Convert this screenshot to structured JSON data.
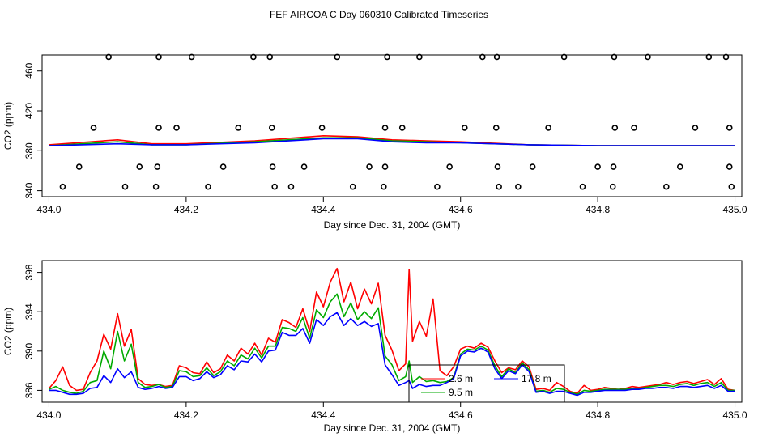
{
  "title": "FEF AIRCOA C  Day 060310  Calibrated Timeseries",
  "chart_data": [
    {
      "type": "scatter+line",
      "xlabel": "Day since Dec. 31, 2004 (GMT)",
      "ylabel": "CO2 (ppm)",
      "xlim": [
        433.99,
        435.01
      ],
      "ylim": [
        334,
        476
      ],
      "xticks": [
        "434.0",
        "434.2",
        "434.4",
        "434.6",
        "434.8",
        "435.0"
      ],
      "yticks": [
        "340",
        "380",
        "420",
        "460"
      ],
      "calibration_points": {
        "x": [
          434.087,
          434.16,
          434.208,
          434.298,
          434.322,
          434.42,
          434.493,
          434.54,
          434.632,
          434.653,
          434.751,
          434.824,
          434.873,
          434.962,
          434.987,
          434.065,
          434.16,
          434.186,
          434.276,
          434.325,
          434.398,
          434.49,
          434.515,
          434.606,
          434.652,
          434.728,
          434.825,
          434.853,
          434.942,
          434.992,
          434.044,
          434.132,
          434.158,
          434.254,
          434.326,
          434.372,
          434.467,
          434.49,
          434.584,
          434.654,
          434.705,
          434.8,
          434.823,
          434.92,
          434.992,
          434.02,
          434.111,
          434.156,
          434.232,
          434.329,
          434.353,
          434.443,
          434.488,
          434.566,
          434.656,
          434.684,
          434.778,
          434.822,
          434.9,
          434.995
        ],
        "y": [
          474,
          474,
          474,
          474,
          474,
          474,
          474,
          474,
          474,
          474,
          474,
          474,
          474,
          474,
          474,
          403,
          403,
          403,
          403,
          403,
          403,
          403,
          403,
          403,
          403,
          403,
          403,
          403,
          403,
          403,
          364,
          364,
          364,
          364,
          364,
          364,
          364,
          364,
          364,
          364,
          364,
          364,
          364,
          364,
          364,
          344,
          344,
          344,
          344,
          344,
          344,
          344,
          344,
          344,
          344,
          344,
          344,
          344,
          344,
          344
        ]
      },
      "series": [
        {
          "name": "2.6 m",
          "color": "#ff0000",
          "x": [
            434.0,
            434.1,
            434.15,
            434.2,
            434.3,
            434.4,
            434.45,
            434.5,
            434.55,
            434.6,
            434.7,
            434.8,
            434.9,
            435.0
          ],
          "values": [
            386,
            391,
            387,
            387,
            390,
            395,
            394,
            391,
            390,
            389,
            386,
            385,
            385,
            385
          ]
        },
        {
          "name": "9.5 m",
          "color": "#00aa00",
          "x": [
            434.0,
            434.1,
            434.15,
            434.2,
            434.3,
            434.4,
            434.45,
            434.5,
            434.55,
            434.6,
            434.7,
            434.8,
            434.9,
            435.0
          ],
          "values": [
            385,
            389,
            386,
            386,
            389,
            393,
            393,
            390,
            389,
            388,
            386,
            385,
            385,
            385
          ]
        },
        {
          "name": "17.8 m",
          "color": "#0000ff",
          "x": [
            434.0,
            434.1,
            434.15,
            434.2,
            434.3,
            434.4,
            434.45,
            434.5,
            434.55,
            434.6,
            434.7,
            434.8,
            434.9,
            435.0
          ],
          "values": [
            385,
            387,
            386,
            386,
            388,
            392,
            392,
            389,
            388,
            388,
            386,
            385,
            385,
            385
          ]
        }
      ]
    },
    {
      "type": "line",
      "xlabel": "Day since Dec. 31, 2004 (GMT)",
      "ylabel": "CO2 (ppm)",
      "xlim": [
        433.99,
        435.01
      ],
      "ylim": [
        384.8,
        399.2
      ],
      "xticks": [
        "434.0",
        "434.2",
        "434.4",
        "434.6",
        "434.8",
        "435.0"
      ],
      "yticks": [
        "386",
        "390",
        "394",
        "398"
      ],
      "legend": {
        "placement": "bottom-center",
        "entries": [
          "2.6 m",
          "17.8 m",
          "9.5 m"
        ]
      },
      "series": [
        {
          "name": "2.6 m",
          "color": "#ff0000",
          "x": [
            434.0,
            434.01,
            434.02,
            434.03,
            434.04,
            434.05,
            434.06,
            434.07,
            434.08,
            434.09,
            434.1,
            434.11,
            434.12,
            434.13,
            434.14,
            434.15,
            434.16,
            434.17,
            434.18,
            434.19,
            434.2,
            434.21,
            434.22,
            434.23,
            434.24,
            434.25,
            434.26,
            434.27,
            434.28,
            434.29,
            434.3,
            434.31,
            434.32,
            434.33,
            434.34,
            434.35,
            434.36,
            434.37,
            434.38,
            434.39,
            434.4,
            434.41,
            434.42,
            434.43,
            434.44,
            434.45,
            434.46,
            434.47,
            434.48,
            434.49,
            434.5,
            434.51,
            434.52,
            434.525,
            434.53,
            434.54,
            434.55,
            434.56,
            434.57,
            434.58,
            434.59,
            434.6,
            434.61,
            434.62,
            434.63,
            434.64,
            434.65,
            434.66,
            434.67,
            434.68,
            434.69,
            434.7,
            434.71,
            434.72,
            434.73,
            434.74,
            434.75,
            434.76,
            434.77,
            434.78,
            434.79,
            434.8,
            434.81,
            434.82,
            434.83,
            434.84,
            434.85,
            434.86,
            434.87,
            434.88,
            434.89,
            434.9,
            434.91,
            434.92,
            434.93,
            434.94,
            434.95,
            434.96,
            434.97,
            434.98,
            434.99,
            435.0
          ],
          "values": [
            386.2,
            387.0,
            388.4,
            386.5,
            386.0,
            386.1,
            387.8,
            389.0,
            391.7,
            390.2,
            393.8,
            390.5,
            392.2,
            387.2,
            386.6,
            386.5,
            386.6,
            386.4,
            386.5,
            388.5,
            388.3,
            387.8,
            387.7,
            388.9,
            387.8,
            388.2,
            389.6,
            389.0,
            390.3,
            389.7,
            390.8,
            389.6,
            391.3,
            390.9,
            393.2,
            392.9,
            392.4,
            394.3,
            392.0,
            396.0,
            394.5,
            397.0,
            398.4,
            395.0,
            397.0,
            394.3,
            396.3,
            394.8,
            396.9,
            391.6,
            390.1,
            388.0,
            388.7,
            398.3,
            391.0,
            393.0,
            391.5,
            395.3,
            388.0,
            387.5,
            388.4,
            390.2,
            390.5,
            390.3,
            390.8,
            390.4,
            389.0,
            387.8,
            388.3,
            388.1,
            389.0,
            388.4,
            386.1,
            386.2,
            386.0,
            386.8,
            386.4,
            385.9,
            385.7,
            386.5,
            386.0,
            386.1,
            386.3,
            386.2,
            386.1,
            386.2,
            386.4,
            386.3,
            386.4,
            386.5,
            386.6,
            386.8,
            386.6,
            386.8,
            386.9,
            386.7,
            386.9,
            387.1,
            386.6,
            387.2,
            386.1,
            386.0
          ]
        },
        {
          "name": "9.5 m",
          "color": "#00aa00",
          "x": [
            434.0,
            434.01,
            434.02,
            434.03,
            434.04,
            434.05,
            434.06,
            434.07,
            434.08,
            434.09,
            434.1,
            434.11,
            434.12,
            434.13,
            434.14,
            434.15,
            434.16,
            434.17,
            434.18,
            434.19,
            434.2,
            434.21,
            434.22,
            434.23,
            434.24,
            434.25,
            434.26,
            434.27,
            434.28,
            434.29,
            434.3,
            434.31,
            434.32,
            434.33,
            434.34,
            434.35,
            434.36,
            434.37,
            434.38,
            434.39,
            434.4,
            434.41,
            434.42,
            434.43,
            434.44,
            434.45,
            434.46,
            434.47,
            434.48,
            434.49,
            434.5,
            434.51,
            434.52,
            434.525,
            434.53,
            434.54,
            434.55,
            434.56,
            434.57,
            434.58,
            434.59,
            434.6,
            434.61,
            434.62,
            434.63,
            434.64,
            434.65,
            434.66,
            434.67,
            434.68,
            434.69,
            434.7,
            434.71,
            434.72,
            434.73,
            434.74,
            434.75,
            434.76,
            434.77,
            434.78,
            434.79,
            434.8,
            434.81,
            434.82,
            434.83,
            434.84,
            434.85,
            434.86,
            434.87,
            434.88,
            434.89,
            434.9,
            434.91,
            434.92,
            434.93,
            434.94,
            434.95,
            434.96,
            434.97,
            434.98,
            434.99,
            435.0
          ],
          "values": [
            386.1,
            386.4,
            386.0,
            385.8,
            385.7,
            385.9,
            386.8,
            387.0,
            390.0,
            388.2,
            392.0,
            389.0,
            390.7,
            386.8,
            386.3,
            386.4,
            386.6,
            386.3,
            386.4,
            388.0,
            387.9,
            387.4,
            387.5,
            388.3,
            387.5,
            387.9,
            389.0,
            388.5,
            389.6,
            389.2,
            390.3,
            389.3,
            390.5,
            390.5,
            392.4,
            392.3,
            392.0,
            393.4,
            391.3,
            394.2,
            393.4,
            395.0,
            395.8,
            393.5,
            394.9,
            393.2,
            394.0,
            393.3,
            394.4,
            389.5,
            388.6,
            387.0,
            387.4,
            389.0,
            386.8,
            387.4,
            386.9,
            387.0,
            386.8,
            386.9,
            387.3,
            389.7,
            390.2,
            390.1,
            390.5,
            390.1,
            388.5,
            387.4,
            388.2,
            387.8,
            388.8,
            388.1,
            385.9,
            386.0,
            385.8,
            386.2,
            386.1,
            385.8,
            385.6,
            386.0,
            385.9,
            386.0,
            386.1,
            386.1,
            386.1,
            386.1,
            386.2,
            386.2,
            386.3,
            386.4,
            386.5,
            386.5,
            386.4,
            386.6,
            386.7,
            386.5,
            386.7,
            386.8,
            386.4,
            386.8,
            386.0,
            386.0
          ]
        },
        {
          "name": "17.8 m",
          "color": "#0000ff",
          "x": [
            434.0,
            434.01,
            434.02,
            434.03,
            434.04,
            434.05,
            434.06,
            434.07,
            434.08,
            434.09,
            434.1,
            434.11,
            434.12,
            434.13,
            434.14,
            434.15,
            434.16,
            434.17,
            434.18,
            434.19,
            434.2,
            434.21,
            434.22,
            434.23,
            434.24,
            434.25,
            434.26,
            434.27,
            434.28,
            434.29,
            434.3,
            434.31,
            434.32,
            434.33,
            434.34,
            434.35,
            434.36,
            434.37,
            434.38,
            434.39,
            434.4,
            434.41,
            434.42,
            434.43,
            434.44,
            434.45,
            434.46,
            434.47,
            434.48,
            434.49,
            434.5,
            434.51,
            434.52,
            434.525,
            434.53,
            434.54,
            434.55,
            434.56,
            434.57,
            434.58,
            434.59,
            434.6,
            434.61,
            434.62,
            434.63,
            434.64,
            434.65,
            434.66,
            434.67,
            434.68,
            434.69,
            434.7,
            434.71,
            434.72,
            434.73,
            434.74,
            434.75,
            434.76,
            434.77,
            434.78,
            434.79,
            434.8,
            434.81,
            434.82,
            434.83,
            434.84,
            434.85,
            434.86,
            434.87,
            434.88,
            434.89,
            434.9,
            434.91,
            434.92,
            434.93,
            434.94,
            434.95,
            434.96,
            434.97,
            434.98,
            434.99,
            435.0
          ],
          "values": [
            386.0,
            386.0,
            385.8,
            385.6,
            385.6,
            385.7,
            386.2,
            386.3,
            387.5,
            386.8,
            388.2,
            387.3,
            387.9,
            386.3,
            386.1,
            386.2,
            386.4,
            386.2,
            386.3,
            387.4,
            387.4,
            387.0,
            387.2,
            387.9,
            387.3,
            387.6,
            388.5,
            388.1,
            389.0,
            388.9,
            389.7,
            388.9,
            390.0,
            390.1,
            391.9,
            391.6,
            391.6,
            392.3,
            390.8,
            393.2,
            392.6,
            393.5,
            393.9,
            392.6,
            393.3,
            392.6,
            393.0,
            392.5,
            392.8,
            388.6,
            387.6,
            386.5,
            386.8,
            387.0,
            386.2,
            386.6,
            386.4,
            386.5,
            386.5,
            386.8,
            387.2,
            389.5,
            390.0,
            389.9,
            390.3,
            389.9,
            388.2,
            387.2,
            388.0,
            387.7,
            388.6,
            387.9,
            385.8,
            385.9,
            385.7,
            385.9,
            385.9,
            385.7,
            385.5,
            385.8,
            385.8,
            385.9,
            386.0,
            386.0,
            386.0,
            386.0,
            386.1,
            386.1,
            386.2,
            386.2,
            386.3,
            386.3,
            386.2,
            386.4,
            386.4,
            386.3,
            386.4,
            386.5,
            386.2,
            386.5,
            385.9,
            385.9
          ]
        }
      ]
    }
  ]
}
